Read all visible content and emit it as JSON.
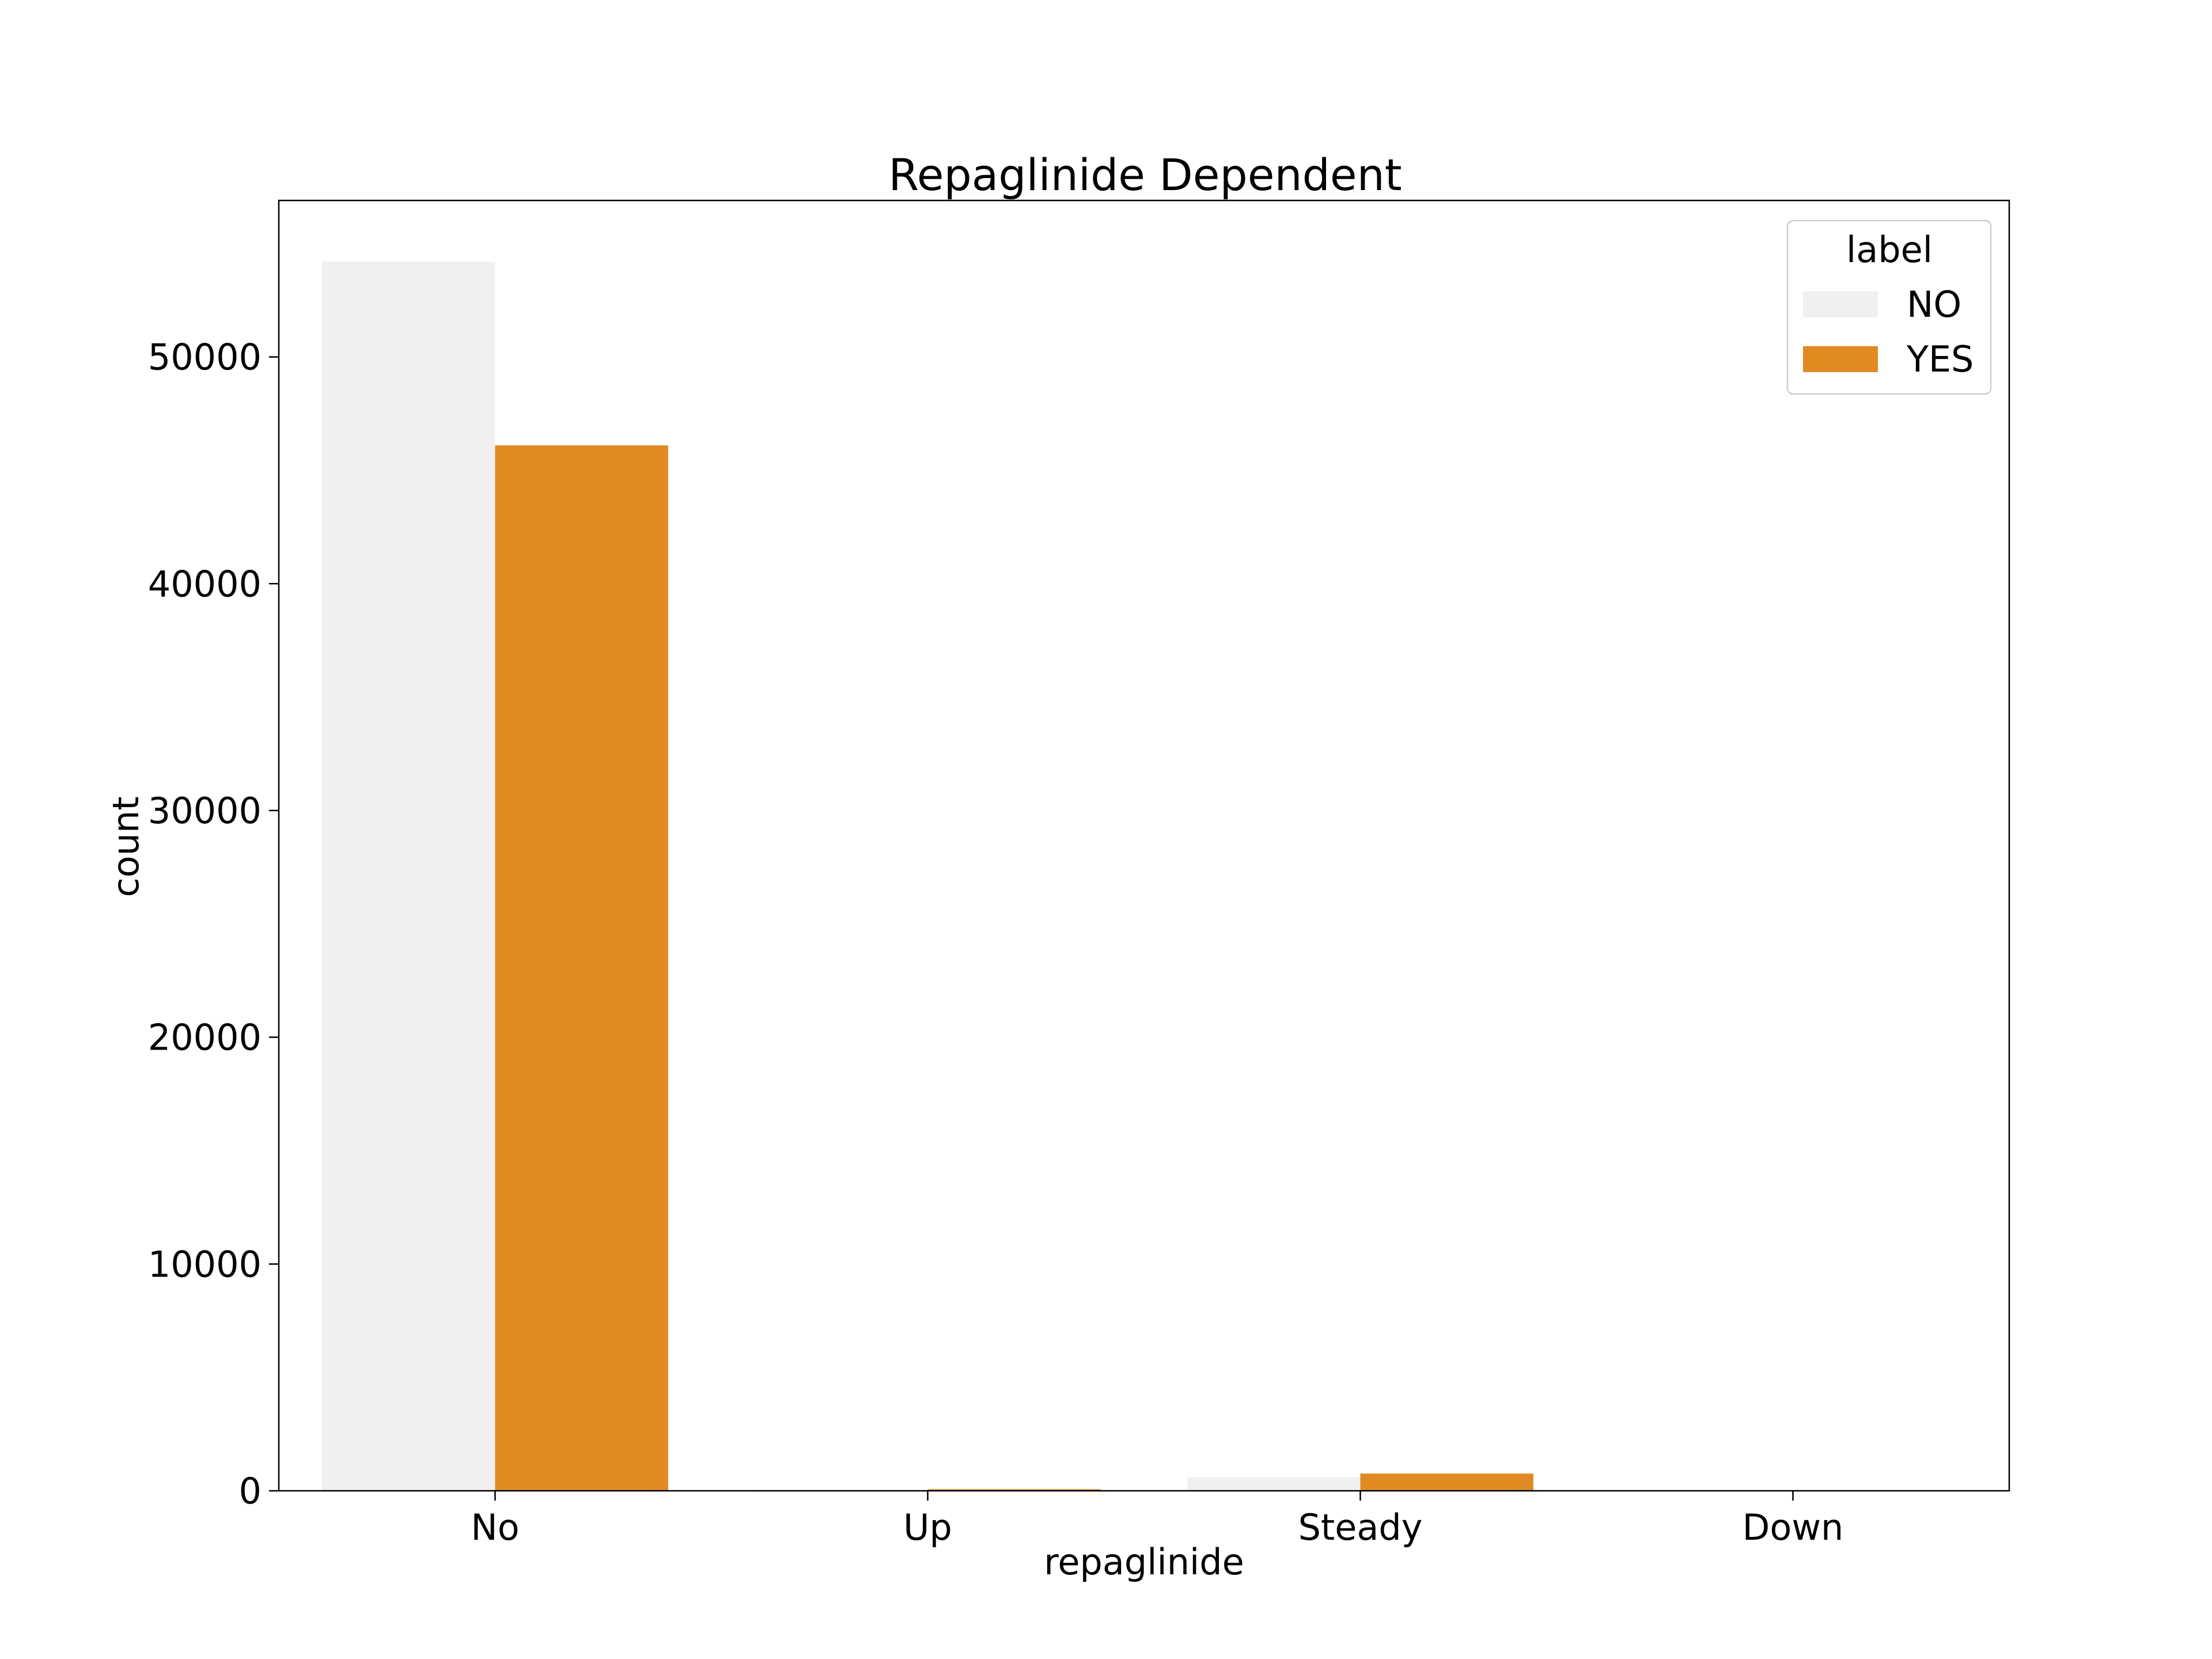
{
  "chart_data": {
    "type": "bar",
    "title": "Repaglinide Dependent",
    "xlabel": "repaglinide",
    "ylabel": "count",
    "categories": [
      "No",
      "Up",
      "Steady",
      "Down"
    ],
    "series": [
      {
        "name": "NO",
        "color": "#f1eff0",
        "values": [
          54200,
          40,
          600,
          3
        ]
      },
      {
        "name": "YES",
        "color": "#e08a21",
        "values": [
          46100,
          70,
          760,
          2
        ]
      }
    ],
    "ylim": [
      0,
      56900
    ],
    "yticks": [
      0,
      10000,
      20000,
      30000,
      40000,
      50000
    ],
    "legend": {
      "title": "label",
      "placement": "top-right"
    },
    "grid": false
  }
}
